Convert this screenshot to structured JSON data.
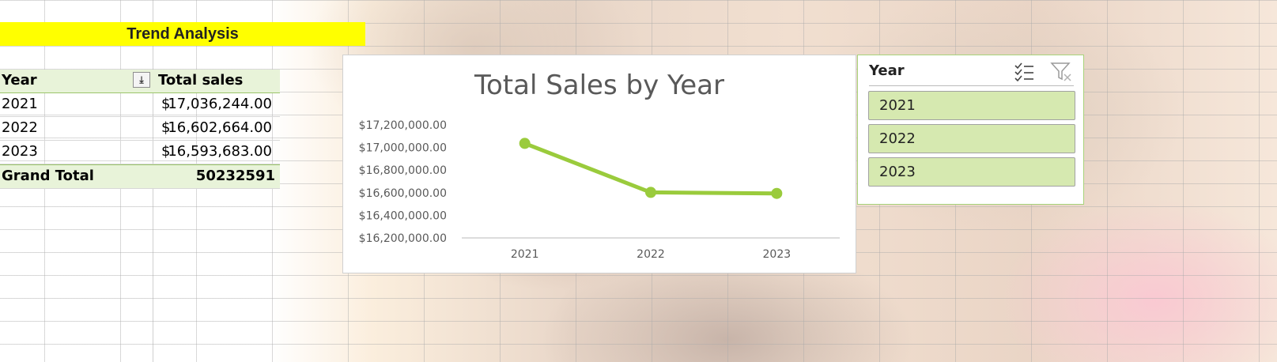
{
  "banner": {
    "title": "Trend Analysis"
  },
  "pivot": {
    "header": {
      "col1": "Year",
      "col2": "Total sales"
    },
    "rows": [
      {
        "year": "2021",
        "currency": "$",
        "amount": "17,036,244.00"
      },
      {
        "year": "2022",
        "currency": "$",
        "amount": "16,602,664.00"
      },
      {
        "year": "2023",
        "currency": "$",
        "amount": "16,593,683.00"
      }
    ],
    "total": {
      "label": "Grand Total",
      "value": "50232591"
    }
  },
  "chart_data": {
    "type": "line",
    "title": "Total Sales by Year",
    "categories": [
      "2021",
      "2022",
      "2023"
    ],
    "series": [
      {
        "values": [
          17036244,
          16602664,
          16593683
        ]
      }
    ],
    "y_ticks": [
      "$17,200,000.00",
      "$17,000,000.00",
      "$16,800,000.00",
      "$16,600,000.00",
      "$16,400,000.00",
      "$16,200,000.00"
    ],
    "ylim": [
      16200000,
      17200000
    ],
    "xlabel": "",
    "ylabel": "",
    "grid": false,
    "legend": "none",
    "color": "#9acb3c"
  },
  "slicer": {
    "title": "Year",
    "items": [
      "2021",
      "2022",
      "2023"
    ],
    "icons": [
      "multi-select-icon",
      "clear-filter-icon"
    ],
    "accent": "#d6e9b0"
  }
}
